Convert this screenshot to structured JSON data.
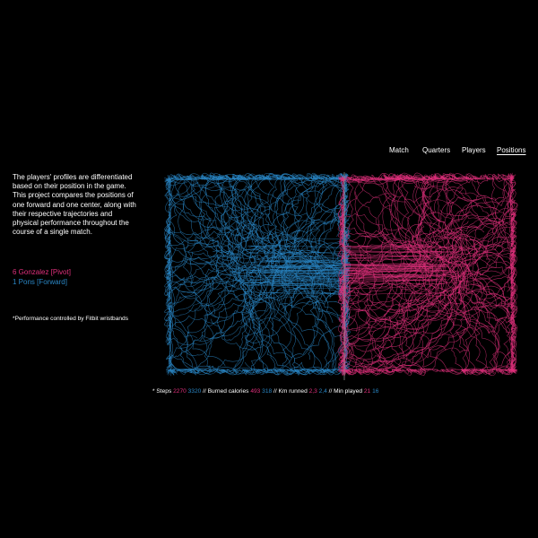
{
  "nav": {
    "items": [
      "Match",
      "Quarters",
      "Players",
      "Positions"
    ],
    "active": "Positions"
  },
  "intro": {
    "text": "The players' profiles are differentiated based on their position in the game. This project compares the positions of one forward and one center, along with their respective trajectories and physical performance throughout the course of a single match."
  },
  "players": [
    {
      "label": "6 Gonzalez [Pivot]",
      "color": "#e0307c"
    },
    {
      "label": "1 Pons [Forward]",
      "color": "#2a86c4"
    }
  ],
  "footnote": "*Performance controlled by Fitbit wristbands",
  "stats": {
    "prefix": "* ",
    "steps_label": "Steps",
    "steps_pink": "2270",
    "steps_blue": "3320",
    "sep1": " // ",
    "calories_label": "Burned calories",
    "calories_pink": "493",
    "calories_blue": "318",
    "sep2": " // ",
    "km_label": "Km runned",
    "km_pink": "2,3",
    "km_blue": "2,4",
    "sep3": " // ",
    "min_label": "Min played",
    "min_pink": "21",
    "min_blue": "16"
  },
  "colors": {
    "pink": "#e0307c",
    "blue": "#2a86c4",
    "background": "#000000",
    "divider": "#888888"
  }
}
